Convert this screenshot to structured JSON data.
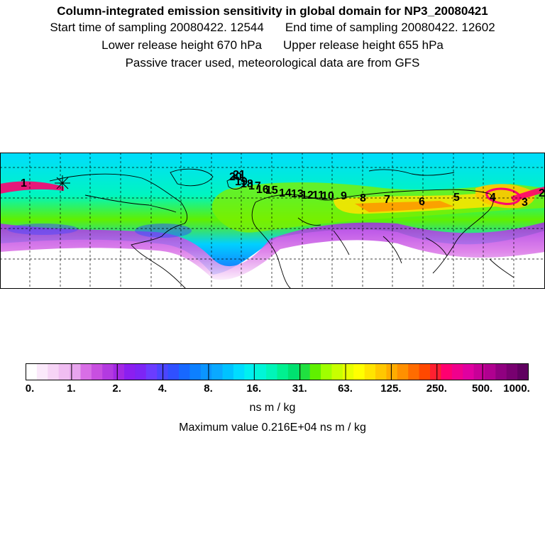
{
  "header": {
    "title": "Column-integrated emission sensitivity in global domain for NP3_20080421",
    "start_label": "Start time of sampling 20080422. 12544",
    "end_label": "End time of sampling 20080422. 12602",
    "lower_label": "Lower release height  670 hPa",
    "upper_label": "Upper release height  655 hPa",
    "note": "Passive tracer used, meteorological data are from GFS"
  },
  "map": {
    "track_labels": [
      "1",
      "2",
      "3",
      "4",
      "5",
      "6",
      "7",
      "8",
      "9",
      "10",
      "11",
      "12",
      "13",
      "14",
      "15",
      "16",
      "17",
      "18",
      "19",
      "20",
      "21"
    ],
    "release_marker": "asterisk-icon",
    "colors": {
      "grid": "#000000",
      "coast": "#000000",
      "frame": "#000000"
    }
  },
  "colorbar": {
    "tick_labels": [
      "0.",
      "1.",
      "2.",
      "4.",
      "8.",
      "16.",
      "31.",
      "63.",
      "125.",
      "250.",
      "500.",
      "1000."
    ],
    "colors": [
      "#ffffff",
      "#fbe9fb",
      "#f6d4f6",
      "#f0bdf2",
      "#e8a5ee",
      "#d86ee6",
      "#c84fe0",
      "#b33ae0",
      "#a328e4",
      "#8b1ff0",
      "#7d25f5",
      "#6b3cff",
      "#4b45ff",
      "#3050ff",
      "#1768ff",
      "#0d80ff",
      "#0b95ff",
      "#0aa9ff",
      "#00c2ff",
      "#00dcff",
      "#00f0f0",
      "#00f5d8",
      "#00f5b8",
      "#00f090",
      "#00e070",
      "#20e040",
      "#60f000",
      "#a0ff00",
      "#c8ff00",
      "#e8ff00",
      "#ffff00",
      "#ffe400",
      "#ffc800",
      "#ffac00",
      "#ff9000",
      "#ff6c00",
      "#ff4800",
      "#ff2030",
      "#ff0070",
      "#f0008c",
      "#e000a0",
      "#c80098",
      "#b00090",
      "#900080",
      "#780070",
      "#600060"
    ],
    "units": "ns m / kg",
    "max_label": "Maximum value  0.216E+04 ns m / kg"
  }
}
